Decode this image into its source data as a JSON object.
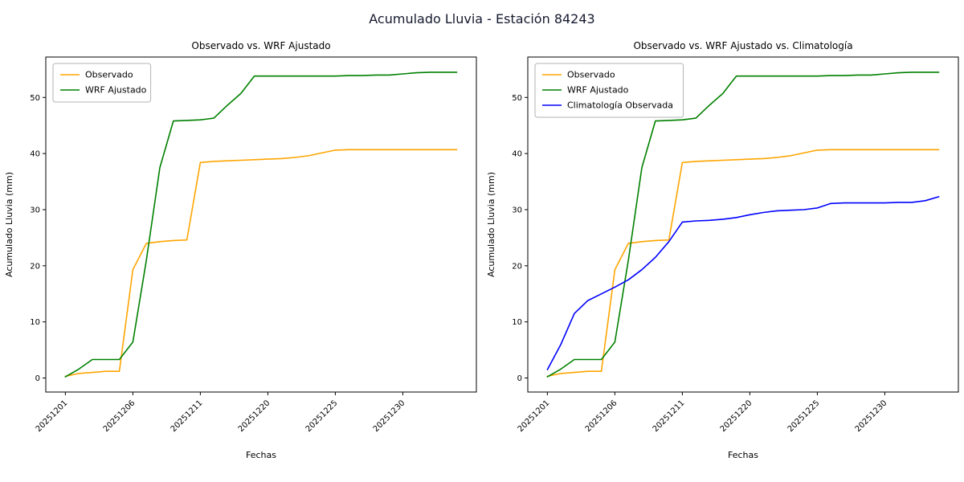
{
  "title": "Acumulado Lluvia - Estación 84243",
  "chart_data": [
    {
      "type": "line",
      "title": "Observado vs. WRF Ajustado",
      "xlabel": "Fechas",
      "ylabel": "Acumulado Lluvia (mm)",
      "grid": false,
      "legend_position": "upper left",
      "ylim": [
        -2.5,
        57.2
      ],
      "yticks": [
        0,
        10,
        20,
        30,
        40,
        50
      ],
      "xticks": {
        "indices": [
          0,
          5,
          10,
          15,
          20,
          25
        ],
        "labels": [
          "20251201",
          "20251206",
          "20251211",
          "20251220",
          "20251225",
          "20251230"
        ]
      },
      "series": [
        {
          "name": "Observado",
          "color": "#ffa500",
          "values": [
            0.3,
            0.8,
            1.0,
            1.2,
            1.2,
            19.3,
            24.0,
            24.3,
            24.5,
            24.6,
            38.4,
            38.6,
            38.7,
            38.8,
            38.9,
            39.0,
            39.1,
            39.3,
            39.6,
            40.1,
            40.6,
            40.7,
            40.7,
            40.7,
            40.7,
            40.7,
            40.7,
            40.7,
            40.7,
            40.7
          ]
        },
        {
          "name": "WRF Ajustado",
          "color": "#008000",
          "values": [
            0.2,
            1.6,
            3.3,
            3.3,
            3.3,
            6.4,
            21.0,
            37.5,
            45.8,
            45.9,
            46.0,
            46.3,
            48.6,
            50.7,
            53.8,
            53.8,
            53.8,
            53.8,
            53.8,
            53.8,
            53.8,
            53.9,
            53.9,
            54.0,
            54.0,
            54.2,
            54.4,
            54.5,
            54.5,
            54.5
          ]
        }
      ]
    },
    {
      "type": "line",
      "title": "Observado vs. WRF Ajustado vs. Climatología",
      "xlabel": "Fechas",
      "ylabel": "Acumulado Lluvia (mm)",
      "grid": false,
      "legend_position": "upper left",
      "ylim": [
        -2.5,
        57.2
      ],
      "yticks": [
        0,
        10,
        20,
        30,
        40,
        50
      ],
      "xticks": {
        "indices": [
          0,
          5,
          10,
          15,
          20,
          25
        ],
        "labels": [
          "20251201",
          "20251206",
          "20251211",
          "20251220",
          "20251225",
          "20251230"
        ]
      },
      "series": [
        {
          "name": "Observado",
          "color": "#ffa500",
          "values": [
            0.3,
            0.8,
            1.0,
            1.2,
            1.2,
            19.3,
            24.0,
            24.3,
            24.5,
            24.6,
            38.4,
            38.6,
            38.7,
            38.8,
            38.9,
            39.0,
            39.1,
            39.3,
            39.6,
            40.1,
            40.6,
            40.7,
            40.7,
            40.7,
            40.7,
            40.7,
            40.7,
            40.7,
            40.7,
            40.7
          ]
        },
        {
          "name": "WRF Ajustado",
          "color": "#008000",
          "values": [
            0.2,
            1.6,
            3.3,
            3.3,
            3.3,
            6.4,
            21.0,
            37.5,
            45.8,
            45.9,
            46.0,
            46.3,
            48.6,
            50.7,
            53.8,
            53.8,
            53.8,
            53.8,
            53.8,
            53.8,
            53.8,
            53.9,
            53.9,
            54.0,
            54.0,
            54.2,
            54.4,
            54.5,
            54.5,
            54.5
          ]
        },
        {
          "name": "Climatología Observada",
          "color": "#0000ff",
          "values": [
            1.5,
            6.0,
            11.5,
            13.8,
            15.0,
            16.2,
            17.5,
            19.3,
            21.5,
            24.3,
            27.8,
            28.0,
            28.1,
            28.3,
            28.6,
            29.1,
            29.5,
            29.8,
            29.9,
            30.0,
            30.3,
            31.1,
            31.2,
            31.2,
            31.2,
            31.2,
            31.3,
            31.3,
            31.6,
            32.3
          ]
        }
      ]
    }
  ]
}
